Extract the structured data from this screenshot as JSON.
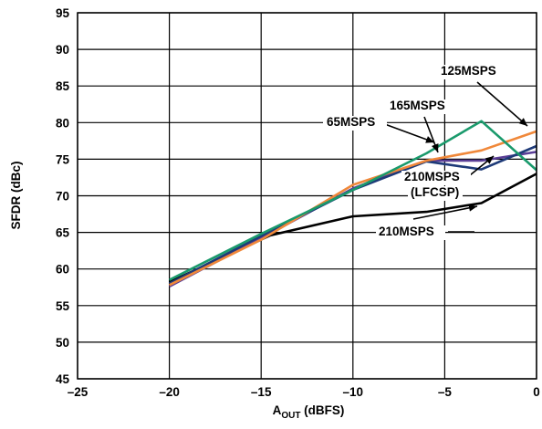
{
  "chart_data": {
    "type": "line",
    "title": "",
    "xlabel": {
      "base": "A",
      "sub": "OUT",
      "rest": " (dBFS)"
    },
    "ylabel": "SFDR (dBc)",
    "xlim": [
      -25,
      0
    ],
    "ylim": [
      45,
      95
    ],
    "xticks": [
      -25,
      -20,
      -15,
      -10,
      -5,
      0
    ],
    "xtick_labels": [
      "–25",
      "–20",
      "–15",
      "–10",
      "–5",
      "0"
    ],
    "yticks": [
      45,
      50,
      55,
      60,
      65,
      70,
      75,
      80,
      85,
      90,
      95
    ],
    "ytick_labels": [
      "45",
      "50",
      "55",
      "60",
      "65",
      "70",
      "75",
      "80",
      "85",
      "90",
      "95"
    ],
    "grid": true,
    "legend": "none",
    "series": [
      {
        "name": "65MSPS",
        "color": "#1a9a6c",
        "x": [
          -20,
          -15,
          -10,
          -6,
          -3,
          0
        ],
        "y": [
          58.5,
          64.8,
          70.8,
          75.8,
          80.2,
          73.5
        ]
      },
      {
        "name": "125MSPS",
        "color": "#f0883a",
        "x": [
          -20,
          -15,
          -10,
          -6,
          -3,
          0
        ],
        "y": [
          57.8,
          64.0,
          71.5,
          74.8,
          76.2,
          78.8
        ]
      },
      {
        "name": "165MSPS",
        "color": "#5a3e96",
        "x": [
          -20,
          -15,
          -10,
          -6,
          -3,
          0
        ],
        "y": [
          57.6,
          64.2,
          71.0,
          74.8,
          74.8,
          76.0
        ]
      },
      {
        "name": "210MSPS (LFCSP)",
        "color": "#1e3a78",
        "x": [
          -20,
          -15,
          -10,
          -6,
          -3,
          0
        ],
        "y": [
          58.0,
          64.5,
          70.8,
          74.7,
          73.6,
          76.8
        ]
      },
      {
        "name": "210MSPS",
        "color": "#000000",
        "x": [
          -20,
          -14.5,
          -10,
          -6,
          -3,
          0
        ],
        "y": [
          58.2,
          64.6,
          67.2,
          67.8,
          69.0,
          73.0
        ]
      }
    ],
    "annotations": [
      {
        "text": "125MSPS",
        "series": "125MSPS"
      },
      {
        "text": "165MSPS",
        "series": "165MSPS"
      },
      {
        "text": "65MSPS",
        "series": "65MSPS"
      },
      {
        "text": "210MSPS",
        "series": "210MSPS (LFCSP)"
      },
      {
        "text": "(LFCSP)",
        "series": "210MSPS (LFCSP)"
      },
      {
        "text": "210MSPS",
        "series": "210MSPS"
      }
    ]
  }
}
